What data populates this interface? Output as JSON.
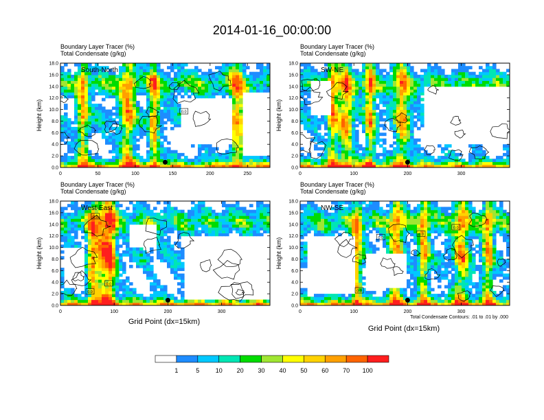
{
  "title": "2014-01-16_00:00:00",
  "colors": {
    "levels": [
      "#ffffff",
      "#1e8cff",
      "#00c8ff",
      "#00e6b4",
      "#00dc00",
      "#a0e632",
      "#ffff00",
      "#ffd200",
      "#ffa000",
      "#ff6400",
      "#ff1e1e"
    ],
    "contour": "#000000"
  },
  "colorbar": {
    "labels": [
      "1",
      "5",
      "10",
      "20",
      "30",
      "40",
      "50",
      "60",
      "70",
      "100"
    ]
  },
  "panels": [
    {
      "name": "South-North",
      "label": "South-North",
      "line1": "Boundary Layer Tracer   (%)",
      "line2": "Total Condensate   (g/kg)",
      "ylabel": "Height (km)",
      "xlabel": "",
      "note": "",
      "xmax": 280,
      "ymax": 18,
      "xticks": [
        "0",
        "50",
        "100",
        "150",
        "200",
        "250"
      ],
      "xtick_values": [
        0,
        50,
        100,
        150,
        200,
        250
      ],
      "yticks": [
        "0.0",
        "2.0",
        "4.0",
        "6.0",
        "8.0",
        "10.0",
        "12.0",
        "14.0",
        "16.0",
        "18.0"
      ],
      "marker_x": 140,
      "contour_labels": [
        {
          "x": 165,
          "y": 9.7,
          "t": "0.0"
        }
      ],
      "tower_x": [
        30,
        90,
        125,
        236
      ],
      "clear": [
        [
          160,
          12,
          230,
          4
        ],
        [
          245,
          13,
          280,
          2
        ]
      ],
      "seed": 3
    },
    {
      "name": "SW-NE",
      "label": "SW-NE",
      "line1": "Boundary Layer Tracer   (%)",
      "line2": "Total Condensate   (g/kg)",
      "ylabel": "Height (km)",
      "xlabel": "",
      "note": "",
      "xmax": 390,
      "ymax": 18,
      "xticks": [
        "0",
        "100",
        "200",
        "300"
      ],
      "xtick_values": [
        0,
        100,
        200,
        300
      ],
      "yticks": [
        "0.0",
        "2.0",
        "4.0",
        "6.0",
        "8.0",
        "10.0",
        "12.0",
        "14.0",
        "16.0",
        "18.0"
      ],
      "marker_x": 200,
      "contour_labels": [],
      "tower_x": [
        60,
        85,
        130,
        190
      ],
      "clear": [
        [
          230,
          14,
          390,
          4
        ],
        [
          20,
          15,
          60,
          9
        ]
      ],
      "seed": 7
    },
    {
      "name": "West-East",
      "label": "West-East",
      "line1": "Boundary Layer Tracer   (%)",
      "line2": "Total Condensate   (g/kg)",
      "ylabel": "Height (km)",
      "xlabel": "Grid Point (dx=15km)",
      "note": "",
      "xmax": 390,
      "ymax": 18,
      "xticks": [
        "0",
        "100",
        "200",
        "300"
      ],
      "xtick_values": [
        0,
        100,
        200,
        300
      ],
      "yticks": [
        "0.0",
        "2.0",
        "4.0",
        "6.0",
        "8.0",
        "10.0",
        "12.0",
        "14.0",
        "16.0",
        "18.0"
      ],
      "marker_x": 200,
      "contour_labels": [
        {
          "x": 65,
          "y": 15.4,
          "t": "0.0"
        },
        {
          "x": 90,
          "y": 3.8,
          "t": "0.0"
        },
        {
          "x": 55,
          "y": 2.4,
          "t": "0.0"
        }
      ],
      "tower_x": [
        60,
        80,
        95
      ],
      "clear": [
        [
          230,
          12,
          390,
          1
        ],
        [
          5,
          10,
          45,
          3
        ],
        [
          130,
          14,
          180,
          10
        ]
      ],
      "seed": 11
    },
    {
      "name": "NW-SE",
      "label": "NW-SE",
      "line1": "Boundary Layer Tracer   (%)",
      "line2": "Total Condensate   (g/kg)",
      "ylabel": "Height (km)",
      "xlabel": "Grid Point (dx=15km)",
      "note": "Total Condensate Contours: .01 to .01 by .000",
      "xmax": 390,
      "ymax": 18,
      "xticks": [
        "0",
        "100",
        "200",
        "300"
      ],
      "xtick_values": [
        0,
        100,
        200,
        300
      ],
      "yticks": [
        "0.0",
        "2.0",
        "4.0",
        "6.0",
        "8.0",
        "10.0",
        "12.0",
        "14.0",
        "16.0",
        "18.0"
      ],
      "marker_x": 200,
      "contour_labels": [
        {
          "x": 150,
          "y": 11.8,
          "t": "0.0"
        },
        {
          "x": 225,
          "y": 12.4,
          "t": "0.0"
        },
        {
          "x": 290,
          "y": 13.5,
          "t": "0.0"
        },
        {
          "x": 110,
          "y": 2.6,
          "t": "0.0"
        }
      ],
      "tower_x": [
        105,
        180,
        230,
        300,
        350
      ],
      "clear": [
        [
          10,
          12,
          100,
          2
        ],
        [
          120,
          9,
          200,
          3
        ]
      ],
      "seed": 19
    }
  ]
}
